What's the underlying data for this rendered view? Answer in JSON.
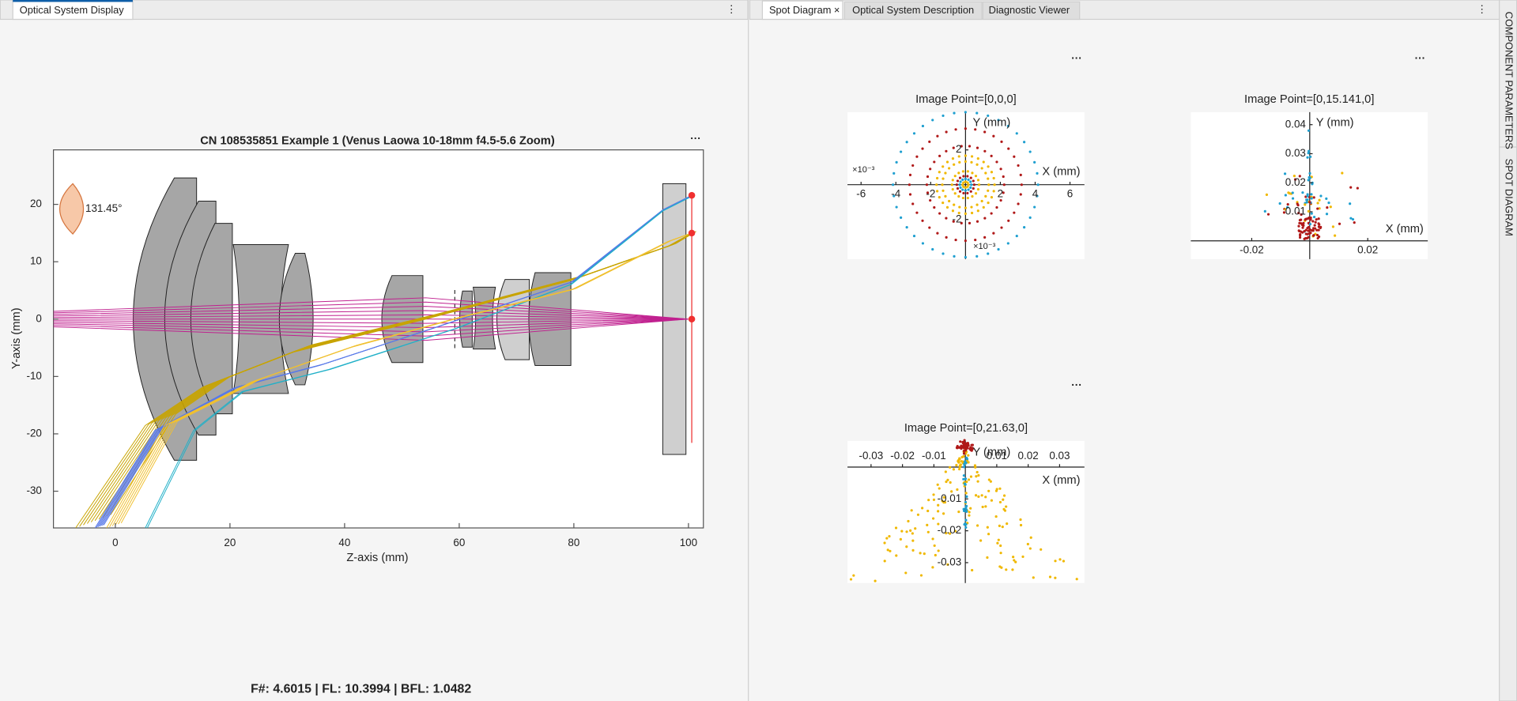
{
  "tabs_left": [
    "Optical System Display"
  ],
  "tabs_right": [
    "Spot Diagram",
    "Optical System Description",
    "Diagnostic Viewer"
  ],
  "side_tabs": [
    "COMPONENT PARAMETERS",
    "SPOT DIAGRAM"
  ],
  "layout_plot": {
    "title": "CN 108535851 Example 1 (Venus Laowa 10-18mm f4.5-5.6 Zoom)",
    "x_label": "Z-axis (mm)",
    "y_label": "Y-axis (mm)",
    "xlim": [
      -10.8,
      102.6
    ],
    "ylim": [
      -36.4,
      29.5
    ],
    "xticks": [
      0,
      20,
      40,
      60,
      80,
      100
    ],
    "yticks": [
      20,
      10,
      0,
      -10,
      -20,
      -30
    ],
    "field_angle_label": "131.45°"
  },
  "summary": "F#: 4.6015   |   FL: 10.3994   |   BFL: 1.0482",
  "spot_diagrams": [
    {
      "title": "Image Point=[0,0,0]",
      "x_label": "X (mm)",
      "y_label": "Y (mm)",
      "xlim": [
        -6.78,
        6.83
      ],
      "ylim": [
        -4.28,
        4.17
      ],
      "xticks": [
        -6,
        -4,
        -2,
        2,
        4,
        6
      ],
      "yticks": [
        2,
        -2
      ],
      "x_exponent": "×10⁻³",
      "y_exponent": "×10⁻³"
    },
    {
      "title": "Image Point=[0,15.141,0]",
      "x_label": "X (mm)",
      "y_label": "Y (mm)",
      "xlim": [
        -0.041,
        0.0407
      ],
      "ylim": [
        -0.0063,
        0.0443
      ],
      "xticks": [
        -0.02,
        0.02
      ],
      "yticks": [
        0.04,
        0.03,
        0.02,
        0.01
      ]
    },
    {
      "title": "Image Point=[0,21.63,0]",
      "x_label": "X (mm)",
      "y_label": "Y (mm)",
      "xlim": [
        -0.0375,
        0.0379
      ],
      "ylim": [
        -0.0364,
        0.0082
      ],
      "xticks": [
        -0.03,
        -0.02,
        -0.01,
        0.01,
        0.02,
        0.03
      ],
      "yticks": [
        -0.01,
        -0.02,
        -0.03
      ]
    }
  ]
}
